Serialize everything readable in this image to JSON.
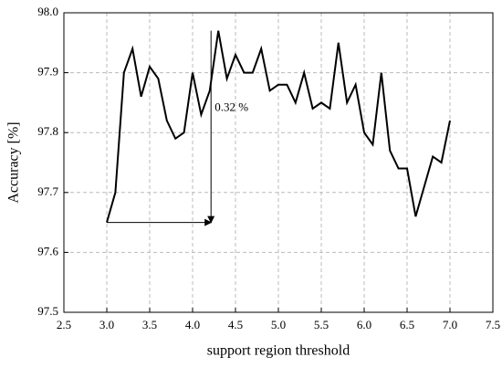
{
  "chart_data": {
    "type": "line",
    "xlabel": "support region threshold",
    "ylabel": "Accuracy [%]",
    "x": [
      3.0,
      3.1,
      3.2,
      3.3,
      3.4,
      3.5,
      3.6,
      3.7,
      3.8,
      3.9,
      4.0,
      4.1,
      4.2,
      4.3,
      4.4,
      4.5,
      4.6,
      4.7,
      4.8,
      4.9,
      5.0,
      5.1,
      5.2,
      5.3,
      5.4,
      5.5,
      5.6,
      5.7,
      5.8,
      5.9,
      6.0,
      6.1,
      6.2,
      6.3,
      6.4,
      6.5,
      6.6,
      6.7,
      6.8,
      6.9,
      7.0
    ],
    "series": [
      {
        "name": "Accuracy",
        "color": "#000000",
        "values": [
          97.65,
          97.7,
          97.9,
          97.94,
          97.86,
          97.91,
          97.89,
          97.82,
          97.79,
          97.8,
          97.9,
          97.83,
          97.87,
          97.97,
          97.89,
          97.93,
          97.9,
          97.9,
          97.94,
          97.87,
          97.88,
          97.88,
          97.85,
          97.9,
          97.84,
          97.85,
          97.84,
          97.95,
          97.85,
          97.88,
          97.8,
          97.78,
          97.9,
          97.77,
          97.74,
          97.74,
          97.66,
          97.71,
          97.76,
          97.75,
          97.82
        ]
      }
    ],
    "xlim": [
      2.5,
      7.5
    ],
    "xticks": [
      2.5,
      3.0,
      3.5,
      4.0,
      4.5,
      5.0,
      5.5,
      6.0,
      6.5,
      7.0,
      7.5
    ],
    "ylim": [
      97.5,
      98.0
    ],
    "yticks": [
      97.5,
      97.6,
      97.7,
      97.8,
      97.9,
      98.0
    ],
    "grid": true,
    "annotation": "0.32 %"
  }
}
